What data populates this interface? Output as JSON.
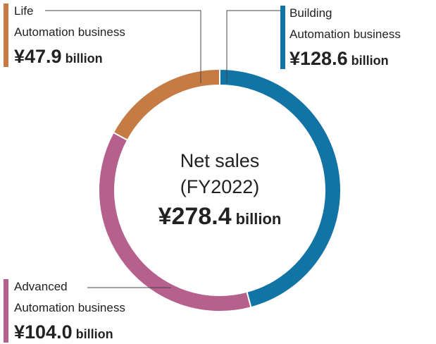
{
  "chart_data": {
    "type": "donut",
    "categories": [
      [
        "Building",
        "Automation business"
      ],
      [
        "Advanced",
        "Automation business"
      ],
      [
        "Life",
        "Automation business"
      ]
    ],
    "values": [
      128.6,
      104.0,
      47.9
    ],
    "value_labels": [
      "¥128.6",
      "¥104.0",
      "¥47.9"
    ],
    "colors": [
      "#1273a5",
      "#b6608e",
      "#c67b45"
    ],
    "unit": "billion",
    "center_label": [
      "Net sales",
      "(FY2022)"
    ],
    "total": 278.4,
    "total_label": "¥278.4"
  }
}
